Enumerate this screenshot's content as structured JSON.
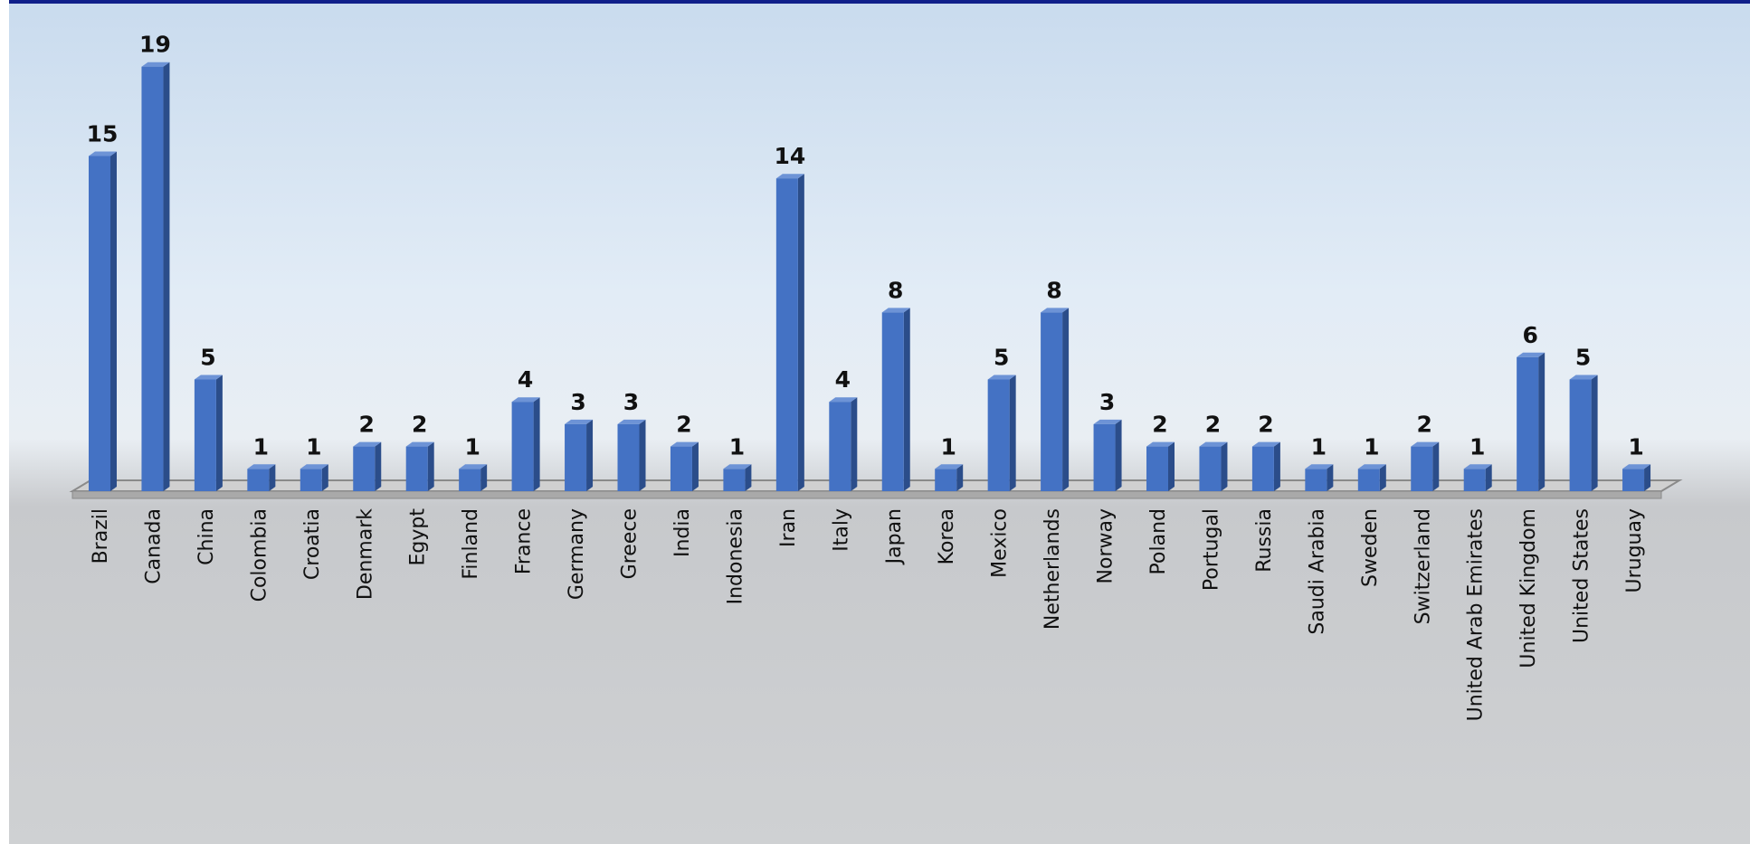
{
  "chart_data": {
    "type": "bar",
    "categories": [
      "Brazil",
      "Canada",
      "China",
      "Colombia",
      "Croatia",
      "Denmark",
      "Egypt",
      "Finland",
      "France",
      "Germany",
      "Greece",
      "India",
      "Indonesia",
      "Iran",
      "Italy",
      "Japan",
      "Korea",
      "Mexico",
      "Netherlands",
      "Norway",
      "Poland",
      "Portugal",
      "Russia",
      "Saudi Arabia",
      "Sweden",
      "Switzerland",
      "United Arab Emirates",
      "United Kingdom",
      "United States",
      "Uruguay"
    ],
    "values": [
      15,
      19,
      5,
      1,
      1,
      2,
      2,
      1,
      4,
      3,
      3,
      2,
      1,
      14,
      4,
      8,
      1,
      5,
      8,
      3,
      2,
      2,
      2,
      1,
      1,
      2,
      1,
      6,
      5,
      1
    ],
    "color": "#4472c4"
  }
}
